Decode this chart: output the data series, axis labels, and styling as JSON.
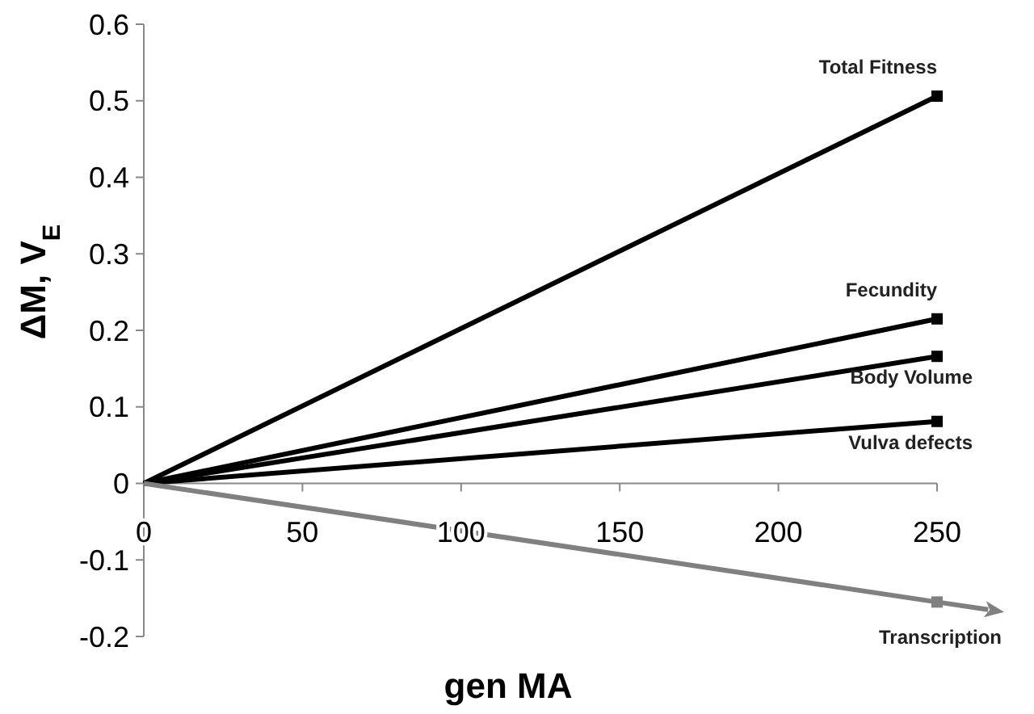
{
  "chart_data": {
    "type": "line",
    "xlabel": "gen MA",
    "ylabel": "ΔM, V$_{E}$",
    "x": [
      0,
      250
    ],
    "series": [
      {
        "name": "Total Fitness",
        "color": "#000000",
        "values": [
          0,
          0.506
        ]
      },
      {
        "name": "Fecundity",
        "color": "#000000",
        "values": [
          0,
          0.215
        ]
      },
      {
        "name": "Body Volume",
        "color": "#000000",
        "values": [
          0,
          0.166
        ]
      },
      {
        "name": "Vulva defects",
        "color": "#000000",
        "values": [
          0,
          0.081
        ]
      },
      {
        "name": "Transcription",
        "color": "#808080",
        "values": [
          0,
          -0.155
        ]
      }
    ],
    "xlim": [
      0,
      250
    ],
    "xticks": [
      0,
      50,
      100,
      150,
      200,
      250
    ],
    "ylim": [
      -0.2,
      0.6
    ],
    "yticks": [
      {
        "value": -0.2,
        "label": "-0.2"
      },
      {
        "value": -0.1,
        "label": "-0.1"
      },
      0,
      {
        "value": 0.1,
        "label": "0.1"
      },
      {
        "value": 0.2,
        "label": "0.2"
      },
      {
        "value": 0.3,
        "label": "0.3"
      },
      {
        "value": 0.4,
        "label": "0.4"
      },
      {
        "value": 0.5,
        "label": "0.5"
      },
      {
        "value": 0.6,
        "label": "0.6"
      }
    ],
    "grid": false,
    "marker": "square",
    "line_style": "solid"
  }
}
